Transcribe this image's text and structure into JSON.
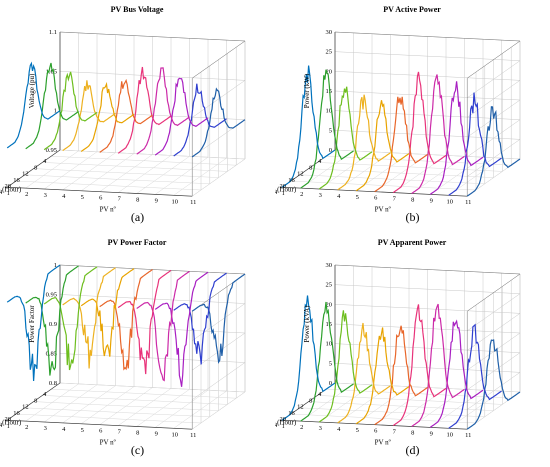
{
  "captions": [
    "(a)",
    "(b)",
    "(c)",
    "(d)"
  ],
  "series_colors": [
    "#0072BD",
    "#2CA02C",
    "#6DBE1E",
    "#EDB120",
    "#E8A300",
    "#E8662A",
    "#E8337A",
    "#CC2AA8",
    "#A81FC2",
    "#2F3FCF",
    "#1F5FA8"
  ],
  "chart_data": [
    {
      "type": "line",
      "title": "PV Bus Voltage",
      "xlabel": "Time (Hour)",
      "ylabel": "PV nº",
      "zlabel": "Voltage (pu)",
      "x_ticks": [
        "4",
        "8",
        "12",
        "16",
        "20",
        "24"
      ],
      "y_ticks": [
        "1",
        "2",
        "3",
        "4",
        "5",
        "6",
        "7",
        "8",
        "9",
        "10",
        "11"
      ],
      "z_ticks": [
        "0.95",
        "1",
        "1.05",
        "1.1"
      ],
      "zlim": [
        0.95,
        1.1
      ],
      "series_shape": {
        "base": 1.0,
        "amplitude": 0.085,
        "noise": 0.008,
        "peak_hour": 13
      },
      "grid": true
    },
    {
      "type": "line",
      "title": "PV Active Power",
      "xlabel": "Time (Hour)",
      "ylabel": "PV nº",
      "zlabel": "Power (kW)",
      "x_ticks": [
        "4",
        "8",
        "12",
        "16",
        "20",
        "24"
      ],
      "y_ticks": [
        "1",
        "2",
        "3",
        "4",
        "5",
        "6",
        "7",
        "8",
        "9",
        "10",
        "11"
      ],
      "z_ticks": [
        "0",
        "5",
        "10",
        "15",
        "20",
        "25",
        "30"
      ],
      "zlim": [
        0,
        30
      ],
      "series_shape": {
        "base": 0,
        "amplitude": 25,
        "noise": 2.5,
        "peak_hour": 12.5
      },
      "grid": true
    },
    {
      "type": "line",
      "title": "PV Power Factor",
      "xlabel": "Time (Hour)",
      "ylabel": "PV nº",
      "zlabel": "Power Factor",
      "x_ticks": [
        "4",
        "8",
        "12",
        "16",
        "20",
        "24"
      ],
      "y_ticks": [
        "1",
        "2",
        "3",
        "4",
        "5",
        "6",
        "7",
        "8",
        "9",
        "10",
        "11"
      ],
      "z_ticks": [
        "0.8",
        "0.85",
        "0.9",
        "0.95",
        "1"
      ],
      "zlim": [
        0.8,
        1.0
      ],
      "series_shape": {
        "base": 1.0,
        "amplitude": -0.15,
        "noise": 0.03,
        "peak_hour": 12
      },
      "grid": true
    },
    {
      "type": "line",
      "title": "PV Apparent Power",
      "xlabel": "Time (Hour)",
      "ylabel": "PV nº",
      "zlabel": "Power (kVA)",
      "x_ticks": [
        "4",
        "8",
        "12",
        "16",
        "20",
        "24"
      ],
      "y_ticks": [
        "1",
        "2",
        "3",
        "4",
        "5",
        "6",
        "7",
        "8",
        "9",
        "10",
        "11"
      ],
      "z_ticks": [
        "0",
        "5",
        "10",
        "15",
        "20",
        "25",
        "30"
      ],
      "zlim": [
        0,
        30
      ],
      "series_shape": {
        "base": 0,
        "amplitude": 26,
        "noise": 2.5,
        "peak_hour": 12.5
      },
      "grid": true
    }
  ]
}
